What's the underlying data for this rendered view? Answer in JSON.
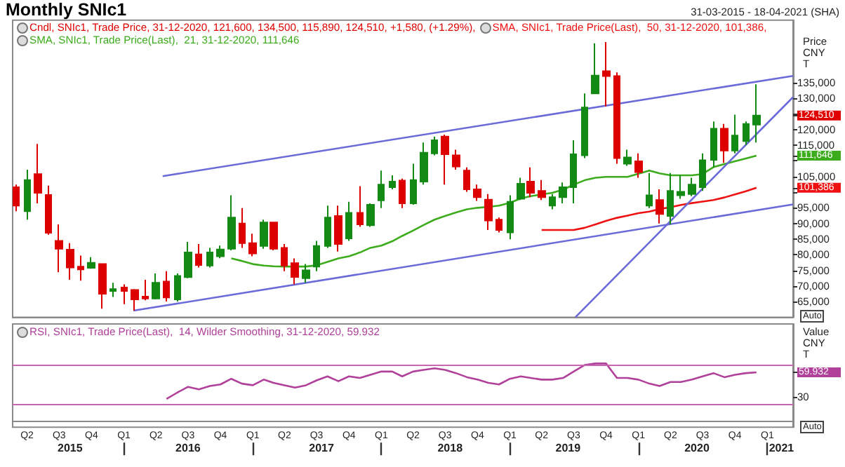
{
  "chart_data": [
    {
      "type": "candlestick",
      "title": "Monthly SNIc1",
      "subtitle": "31-03-2015 - 18-04-2021 (SHA)",
      "ylabel": "Price\nCNY\nT",
      "tick_labels": "y",
      "legend": "top left",
      "marker": "none",
      "x": [
        "2015-03",
        "2015-04",
        "2015-05",
        "2015-06",
        "2015-07",
        "2015-08",
        "2015-09",
        "2015-10",
        "2015-11",
        "2015-12",
        "2016-01",
        "2016-02",
        "2016-03",
        "2016-04",
        "2016-05",
        "2016-06",
        "2016-07",
        "2016-08",
        "2016-09",
        "2016-10",
        "2016-11",
        "2016-12",
        "2017-01",
        "2017-02",
        "2017-03",
        "2017-04",
        "2017-05",
        "2017-06",
        "2017-07",
        "2017-08",
        "2017-09",
        "2017-10",
        "2017-11",
        "2017-12",
        "2018-01",
        "2018-02",
        "2018-03",
        "2018-04",
        "2018-05",
        "2018-06",
        "2018-07",
        "2018-08",
        "2018-09",
        "2018-10",
        "2018-11",
        "2018-12",
        "2019-01",
        "2019-02",
        "2019-03",
        "2019-04",
        "2019-05",
        "2019-06",
        "2019-07",
        "2019-08",
        "2019-09",
        "2019-10",
        "2019-11",
        "2019-12",
        "2020-01",
        "2020-02",
        "2020-03",
        "2020-04",
        "2020-05",
        "2020-06",
        "2020-07",
        "2020-08",
        "2020-09",
        "2020-10",
        "2020-11",
        "2020-12"
      ],
      "xlim": [
        "2015-02-19",
        "2021-03-15"
      ],
      "ylim": [
        60000,
        155000
      ],
      "yticks": [
        {
          "value": 65000,
          "label": "65,000"
        },
        {
          "value": 70000,
          "label": "70,000"
        },
        {
          "value": 75000,
          "label": "75,000"
        },
        {
          "value": 80000,
          "label": "80,000"
        },
        {
          "value": 85000,
          "label": "85,000"
        },
        {
          "value": 90000,
          "label": "90,000"
        },
        {
          "value": 95000,
          "label": "95,000"
        },
        {
          "value": 100000,
          "label": null
        },
        {
          "value": 105000,
          "label": "105,000"
        },
        {
          "value": 110000,
          "label": null
        },
        {
          "value": 115000,
          "label": "115,000"
        },
        {
          "value": 120000,
          "label": "120,000"
        },
        {
          "value": 125000,
          "label": null
        },
        {
          "value": 130000,
          "label": "130,000"
        },
        {
          "value": 135000,
          "label": "135,000"
        },
        {
          "value": 124510,
          "label": "124,510"
        },
        {
          "value": 111646,
          "label": "111,646"
        },
        {
          "value": 101386,
          "label": "101,386"
        }
      ],
      "annotations": [
        "Auto"
      ],
      "series": [
        {
          "name": "Cndl, SNIc1, Trade Price, 31-12-2020, 121,600, 134,500, 115,890, 124,510, +1,580, (+1.29%),",
          "color": "#e00000",
          "colors": [
            "#dd0000",
            "#138a13",
            "#dd0000",
            "#dd0000",
            "#dd0000",
            "#dd0000",
            "#dd0000",
            "#138a13",
            "#dd0000",
            "#138a13",
            "#dd0000",
            "#dd0000",
            "#dd0000",
            "#138a13",
            "#dd0000",
            "#138a13",
            "#138a13",
            "#dd0000",
            "#138a13",
            "#138a13",
            "#138a13",
            "#dd0000",
            "#dd0000",
            "#138a13",
            "#dd0000",
            "#dd0000",
            "#dd0000",
            "#138a13",
            "#138a13",
            "#138a13",
            "#dd0000",
            "#138a13",
            "#dd0000",
            "#138a13",
            "#138a13",
            "#138a13",
            "#dd0000",
            "#138a13",
            "#138a13",
            "#138a13",
            "#dd0000",
            "#dd0000",
            "#dd0000",
            "#dd0000",
            "#dd0000",
            "#dd0000",
            "#138a13",
            "#138a13",
            "#dd0000",
            "#dd0000",
            "#138a13",
            "#138a13",
            "#138a13",
            "#138a13",
            "#138a13",
            "#dd0000",
            "#dd0000",
            "#138a13",
            "#dd0000",
            "#138a13",
            "#dd0000",
            "#138a13",
            "#138a13",
            "#138a13",
            "#138a13",
            "#138a13",
            "#dd0000",
            "#138a13",
            "#138a13",
            "#138a13"
          ],
          "ohlc": [
            [
              101600,
              102400,
              93900,
              95700
            ],
            [
              93900,
              107200,
              91200,
              103900
            ],
            [
              105800,
              115400,
              96400,
              99800
            ],
            [
              99100,
              102100,
              86400,
              87000
            ],
            [
              84400,
              89700,
              74400,
              81900
            ],
            [
              81600,
              83700,
              72000,
              75900
            ],
            [
              76200,
              79700,
              71700,
              75300
            ],
            [
              75800,
              79200,
              75500,
              77400
            ],
            [
              77000,
              77000,
              62700,
              67500
            ],
            [
              68400,
              71000,
              66500,
              69000
            ],
            [
              69500,
              70500,
              64200,
              68400
            ],
            [
              68700,
              69000,
              62100,
              65700
            ],
            [
              66600,
              72000,
              65400,
              66000
            ],
            [
              66000,
              74000,
              65700,
              71000
            ],
            [
              71400,
              74700,
              65000,
              66300
            ],
            [
              65700,
              74000,
              65000,
              73200
            ],
            [
              72800,
              84100,
              72500,
              80700
            ],
            [
              80100,
              83400,
              75900,
              76700
            ],
            [
              76500,
              82200,
              75900,
              80700
            ],
            [
              79500,
              82900,
              78900,
              81700
            ],
            [
              81900,
              99000,
              81400,
              91900
            ],
            [
              90000,
              94900,
              82200,
              83700
            ],
            [
              83700,
              86700,
              79500,
              80400
            ],
            [
              82800,
              91200,
              81900,
              90300
            ],
            [
              90300,
              90300,
              81400,
              81900
            ],
            [
              82200,
              83400,
              74700,
              76500
            ],
            [
              77300,
              78800,
              70500,
              72900
            ],
            [
              72500,
              77000,
              71000,
              75000
            ],
            [
              76200,
              84400,
              74700,
              82800
            ],
            [
              82800,
              95700,
              82200,
              91900
            ],
            [
              92400,
              95700,
              81000,
              83400
            ],
            [
              85200,
              96900,
              84400,
              93400
            ],
            [
              93400,
              101900,
              88900,
              89700
            ],
            [
              89400,
              96400,
              88900,
              96000
            ],
            [
              97400,
              106900,
              94900,
              102400
            ],
            [
              101600,
              105400,
              100900,
              103400
            ],
            [
              103700,
              104300,
              94900,
              96400
            ],
            [
              96400,
              109100,
              96000,
              103900
            ],
            [
              103400,
              115900,
              102400,
              112600
            ],
            [
              112400,
              117800,
              111800,
              116600
            ],
            [
              117800,
              118400,
              102400,
              112100
            ],
            [
              111800,
              113600,
              107200,
              108200
            ],
            [
              106900,
              107900,
              100100,
              100900
            ],
            [
              100900,
              102400,
              97200,
              98400
            ],
            [
              97600,
              99400,
              87900,
              90900
            ],
            [
              91200,
              91900,
              87100,
              87900
            ],
            [
              87100,
              99000,
              84900,
              96900
            ],
            [
              97900,
              104600,
              97500,
              102700
            ],
            [
              103400,
              107900,
              98400,
              99800
            ],
            [
              100400,
              103900,
              97500,
              98400
            ],
            [
              95700,
              99400,
              94500,
              98400
            ],
            [
              98400,
              103100,
              96400,
              101600
            ],
            [
              101600,
              116600,
              96400,
              112100
            ],
            [
              111800,
              131600,
              110900,
              127100
            ],
            [
              131600,
              147600,
              131600,
              137300
            ],
            [
              138700,
              148000,
              127400,
              137100
            ],
            [
              137100,
              138300,
              109100,
              110900
            ],
            [
              109100,
              113600,
              108400,
              111100
            ],
            [
              109900,
              112400,
              104600,
              106400
            ],
            [
              95700,
              106100,
              94900,
              99000
            ],
            [
              97500,
              100900,
              90000,
              93000
            ],
            [
              92400,
              106100,
              89700,
              100400
            ],
            [
              99000,
              105400,
              97900,
              100100
            ],
            [
              99400,
              104600,
              98700,
              102400
            ],
            [
              101600,
              112400,
              100400,
              110200
            ],
            [
              110300,
              122600,
              107900,
              120300
            ],
            [
              120300,
              121800,
              109400,
              113300
            ],
            [
              113300,
              124800,
              112400,
              118100
            ],
            [
              116300,
              122600,
              115100,
              121800
            ],
            [
              121600,
              134500,
              115890,
              124510
            ]
          ]
        },
        {
          "type": "line",
          "name": "SMA, SNIc1, Trade Price(Last),  50, 31-12-2020, 101,386,",
          "color": "#ee1111",
          "values": [
            null,
            null,
            null,
            null,
            null,
            null,
            null,
            null,
            null,
            null,
            null,
            null,
            null,
            null,
            null,
            null,
            null,
            null,
            null,
            null,
            null,
            null,
            null,
            null,
            null,
            null,
            null,
            null,
            null,
            null,
            null,
            null,
            null,
            null,
            null,
            null,
            null,
            null,
            null,
            null,
            null,
            null,
            null,
            null,
            null,
            null,
            null,
            null,
            null,
            87900,
            87900,
            87900,
            87900,
            88600,
            89700,
            90800,
            91800,
            92500,
            93300,
            93800,
            94600,
            95200,
            95900,
            96500,
            97000,
            97500,
            98300,
            99300,
            100300,
            101386
          ]
        },
        {
          "type": "line",
          "name": "SMA, SNIc1, Trade Price(Last),  21, 31-12-2020, 111,646",
          "color": "#3cac1c",
          "values": [
            null,
            null,
            null,
            null,
            null,
            null,
            null,
            null,
            null,
            null,
            null,
            null,
            null,
            null,
            null,
            null,
            null,
            null,
            null,
            null,
            78800,
            78000,
            77000,
            76500,
            76300,
            76200,
            76200,
            76200,
            76600,
            77700,
            78800,
            79500,
            80700,
            82200,
            82900,
            84300,
            86000,
            87700,
            89500,
            91200,
            92400,
            93500,
            94500,
            95000,
            95300,
            95700,
            96600,
            98000,
            98700,
            99300,
            99800,
            100800,
            102400,
            103800,
            104600,
            104900,
            104900,
            104900,
            105900,
            106900,
            106000,
            105400,
            105400,
            105400,
            105800,
            108000,
            109000,
            109900,
            110800,
            111646
          ]
        },
        {
          "type": "line",
          "color": "#6a6ad8",
          "x": [
            "2016-04-20",
            "2021-03-15"
          ],
          "values": [
            105100,
            137200
          ]
        },
        {
          "type": "line",
          "color": "#6a6ad8",
          "x": [
            "2016-01-28",
            "2021-03-15"
          ],
          "values": [
            62100,
            96100
          ]
        },
        {
          "type": "line",
          "color": "#6a6ad8",
          "x": [
            "2019-07-06",
            "2021-03-15"
          ],
          "values": [
            60000,
            130400
          ]
        }
      ]
    },
    {
      "type": "line",
      "ylabel": "Value\nCNY\nT",
      "legend": "top left",
      "marker": "none",
      "x": [
        "2016-05",
        "2016-06",
        "2016-07",
        "2016-08",
        "2016-09",
        "2016-10",
        "2016-11",
        "2016-12",
        "2017-01",
        "2017-02",
        "2017-03",
        "2017-04",
        "2017-05",
        "2017-06",
        "2017-07",
        "2017-08",
        "2017-09",
        "2017-10",
        "2017-11",
        "2017-12",
        "2018-01",
        "2018-02",
        "2018-03",
        "2018-04",
        "2018-05",
        "2018-06",
        "2018-07",
        "2018-08",
        "2018-09",
        "2018-10",
        "2018-11",
        "2018-12",
        "2019-01",
        "2019-02",
        "2019-03",
        "2019-04",
        "2019-05",
        "2019-06",
        "2019-07",
        "2019-08",
        "2019-09",
        "2019-10",
        "2019-11",
        "2019-12",
        "2020-01",
        "2020-02",
        "2020-03",
        "2020-04",
        "2020-05",
        "2020-06",
        "2020-07",
        "2020-08",
        "2020-09",
        "2020-10",
        "2020-11",
        "2020-12"
      ],
      "xlim": [
        "2015-02-19",
        "2021-03-15"
      ],
      "x2lim": [
        "2015-02-19",
        "2021-03-15"
      ],
      "ylim": [
        -8,
        120
      ],
      "yticks": [
        30,
        {
          "value": 59.932,
          "label": "59.932"
        }
      ],
      "xticks": [
        {
          "value": "2015-04-01",
          "label": "Q2"
        },
        {
          "value": "2015-07-01",
          "label": "Q3"
        },
        {
          "value": "2015-10-01",
          "label": "Q4"
        },
        {
          "value": "2016-01-01",
          "label": "Q1"
        },
        {
          "value": "2016-04-01",
          "label": "Q2"
        },
        {
          "value": "2016-07-01",
          "label": "Q3"
        },
        {
          "value": "2016-10-01",
          "label": "Q4"
        },
        {
          "value": "2017-01-01",
          "label": "Q1"
        },
        {
          "value": "2017-04-01",
          "label": "Q2"
        },
        {
          "value": "2017-07-01",
          "label": "Q3"
        },
        {
          "value": "2017-10-01",
          "label": "Q4"
        },
        {
          "value": "2018-01-01",
          "label": "Q1"
        },
        {
          "value": "2018-04-01",
          "label": "Q2"
        },
        {
          "value": "2018-07-01",
          "label": "Q3"
        },
        {
          "value": "2018-10-01",
          "label": "Q4"
        },
        {
          "value": "2019-01-01",
          "label": "Q1"
        },
        {
          "value": "2019-04-01",
          "label": "Q2"
        },
        {
          "value": "2019-07-01",
          "label": "Q3"
        },
        {
          "value": "2019-10-01",
          "label": "Q4"
        },
        {
          "value": "2020-01-01",
          "label": "Q1"
        },
        {
          "value": "2020-04-01",
          "label": "Q2"
        },
        {
          "value": "2020-07-01",
          "label": "Q3"
        },
        {
          "value": "2020-10-01",
          "label": "Q4"
        },
        {
          "value": "2021-01-01",
          "label": "Q1"
        }
      ],
      "x2ticks": [
        {
          "value": "2015-08-01",
          "label": "2015"
        },
        {
          "value": "2016-01-01",
          "label": null
        },
        {
          "value": "2016-07-01",
          "label": "2016"
        },
        {
          "value": "2017-01-01",
          "label": null
        },
        {
          "value": "2017-07-15",
          "label": "2017"
        },
        {
          "value": "2018-01-01",
          "label": null
        },
        {
          "value": "2018-07-15",
          "label": "2018"
        },
        {
          "value": "2019-01-01",
          "label": null
        },
        {
          "value": "2019-06-15",
          "label": "2019"
        },
        {
          "value": "2020-01-01",
          "label": null
        },
        {
          "value": "2020-06-15",
          "label": "2020"
        },
        {
          "value": "2021-01-01",
          "label": null
        },
        {
          "value": "2021-02-10",
          "label": "2021"
        }
      ],
      "ref_lines": [
        {
          "axis": "y",
          "value": 70,
          "color": "#c866b0"
        },
        {
          "axis": "y",
          "value": 20,
          "color": "#c866b0"
        }
      ],
      "annotations": [
        "Auto"
      ],
      "series": [
        {
          "name": "RSI, SNIc1, Trade Price(Last),  14, Wilder Smoothing, 31-12-2020, 59.932",
          "color": "#b0409a",
          "values": [
            27,
            35,
            42,
            39,
            43,
            45,
            52,
            46,
            44,
            51,
            47,
            44,
            41,
            44,
            50,
            55,
            49,
            55,
            53,
            57,
            61,
            61,
            55,
            61,
            63,
            65,
            63,
            59,
            54,
            51,
            47,
            45,
            52,
            55,
            53,
            51,
            51,
            53,
            61,
            69,
            71,
            71,
            53,
            53,
            51,
            46,
            43,
            48,
            48,
            51,
            55,
            59,
            54,
            57,
            59,
            59.932
          ]
        }
      ]
    }
  ]
}
